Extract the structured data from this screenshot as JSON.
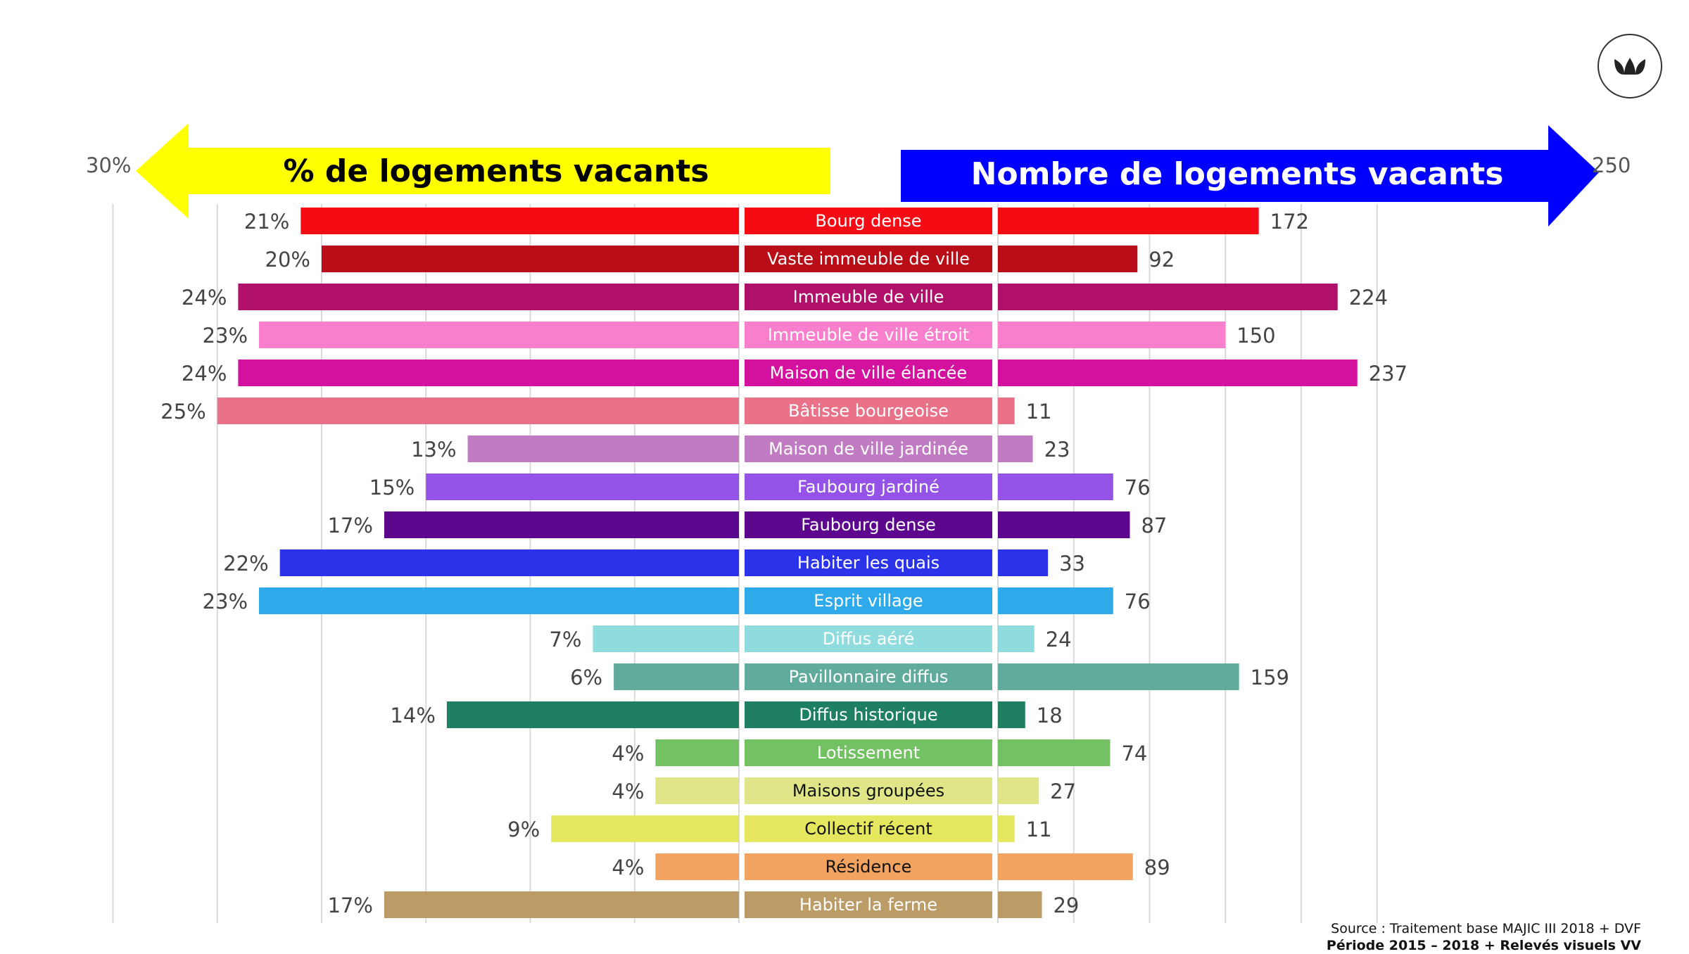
{
  "left_header": "% de logements vacants",
  "right_header": "Nombre de logements vacants",
  "left_axis_max_label": "30%",
  "right_axis_max_label": "250",
  "source": {
    "line1": "Source : Traitement base MAJIC III 2018 + DVF",
    "line2": "Période 2015 – 2018 + Relevés visuels VV"
  },
  "colors": {
    "left_arrow": "#ffff00",
    "right_arrow": "#0000ff",
    "gridline": "#d9d9d9"
  },
  "chart_data": {
    "type": "bar",
    "orientation": "horizontal-butterfly",
    "grid": true,
    "left_axis": {
      "label": "% de logements vacants",
      "range": [
        0,
        30
      ],
      "unit": "%"
    },
    "right_axis": {
      "label": "Nombre de logements vacants",
      "range": [
        0,
        250
      ]
    },
    "categories": [
      "Bourg dense",
      "Vaste immeuble de ville",
      "Immeuble de ville",
      "Immeuble de ville étroit",
      "Maison de ville élancée",
      "Bâtisse bourgeoise",
      "Maison de ville jardinée",
      "Faubourg jardiné",
      "Faubourg dense",
      "Habiter les quais",
      "Esprit village",
      "Diffus aéré",
      "Pavillonnaire diffus",
      "Diffus historique",
      "Lotissement",
      "Maisons groupées",
      "Collectif récent",
      "Résidence",
      "Habiter la ferme"
    ],
    "left_values": [
      21,
      20,
      24,
      23,
      24,
      25,
      13,
      15,
      17,
      22,
      23,
      7,
      6,
      14,
      4,
      4,
      9,
      4,
      17
    ],
    "left_labels": [
      "21%",
      "20%",
      "24%",
      "23%",
      "24%",
      "25%",
      "13%",
      "15%",
      "17%",
      "22%",
      "23%",
      "7%",
      "6%",
      "14%",
      "4%",
      "4%",
      "9%",
      "4%",
      "17%"
    ],
    "right_values": [
      172,
      92,
      224,
      150,
      237,
      11,
      23,
      76,
      87,
      33,
      76,
      24,
      159,
      18,
      74,
      27,
      11,
      89,
      29
    ],
    "right_labels": [
      "172",
      "92",
      "224",
      "150",
      "237",
      "11",
      "23",
      "76",
      "87",
      "33",
      "76",
      "24",
      "159",
      "18",
      "74",
      "27",
      "11",
      "89",
      "29"
    ],
    "colors": [
      "#f40b14",
      "#b90d17",
      "#b01069",
      "#f97ecb",
      "#d3119e",
      "#e97289",
      "#c17bc2",
      "#9453e6",
      "#5d078f",
      "#2a33ea",
      "#2ea9e9",
      "#8fdbde",
      "#61ab9c",
      "#1f7f62",
      "#72c162",
      "#e0e688",
      "#e5e75e",
      "#f2a35f",
      "#bb9b66"
    ],
    "category_text_colors": [
      "#ffffff",
      "#ffffff",
      "#ffffff",
      "#ffffff",
      "#ffffff",
      "#ffffff",
      "#ffffff",
      "#ffffff",
      "#ffffff",
      "#ffffff",
      "#ffffff",
      "#ffffff",
      "#ffffff",
      "#ffffff",
      "#ffffff",
      "#111111",
      "#111111",
      "#111111",
      "#ffffff"
    ]
  }
}
